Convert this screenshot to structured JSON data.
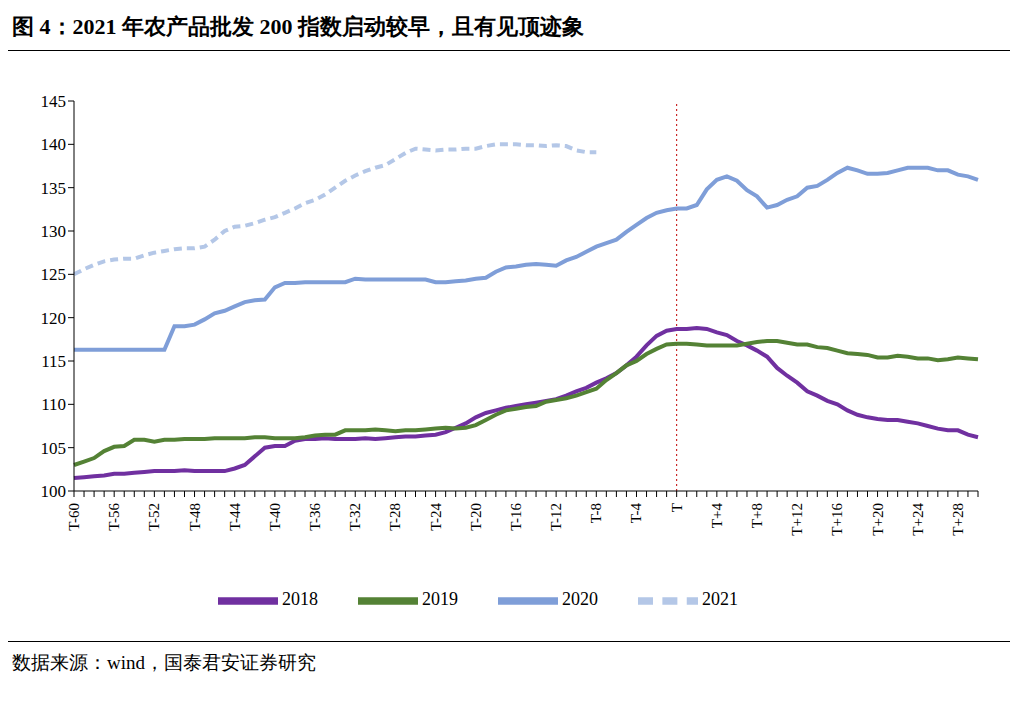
{
  "title": "图 4：2021 年农产品批发 200 指数启动较早，且有见顶迹象",
  "source": "数据来源：wind，国泰君安证券研究",
  "chart_data": {
    "type": "line",
    "categories": [
      "T-60",
      null,
      null,
      null,
      "T-56",
      null,
      null,
      null,
      "T-52",
      null,
      null,
      null,
      "T-48",
      null,
      null,
      null,
      "T-44",
      null,
      null,
      null,
      "T-40",
      null,
      null,
      null,
      "T-36",
      null,
      null,
      null,
      "T-32",
      null,
      null,
      null,
      "T-28",
      null,
      null,
      null,
      "T-24",
      null,
      null,
      null,
      "T-20",
      null,
      null,
      null,
      "T-16",
      null,
      null,
      null,
      "T-12",
      null,
      null,
      null,
      "T-8",
      null,
      null,
      null,
      "T-4",
      null,
      null,
      null,
      "T",
      null,
      null,
      null,
      "T+4",
      null,
      null,
      null,
      "T+8",
      null,
      null,
      null,
      "T+12",
      null,
      null,
      null,
      "T+16",
      null,
      null,
      null,
      "T+20",
      null,
      null,
      null,
      "T+24",
      null,
      null,
      null,
      "T+28",
      null,
      null
    ],
    "ylim": [
      100,
      145
    ],
    "yticks": [
      100,
      105,
      110,
      115,
      120,
      125,
      130,
      135,
      140,
      145
    ],
    "grid": false,
    "legend": "bottom",
    "reference_line": {
      "x": "T",
      "color": "#c00000",
      "line_style": "dotted"
    },
    "series": [
      {
        "name": "2018",
        "color": "#7030a0",
        "line_style": "solid",
        "values": [
          101.5,
          101.6,
          101.7,
          101.8,
          102.0,
          102.0,
          102.1,
          102.2,
          102.3,
          102.3,
          102.3,
          102.4,
          102.3,
          102.3,
          102.3,
          102.3,
          102.6,
          103.0,
          104.0,
          105.0,
          105.2,
          105.2,
          105.8,
          106.0,
          106.0,
          106.1,
          106.0,
          106.0,
          106.0,
          106.1,
          106.0,
          106.1,
          106.2,
          106.3,
          106.3,
          106.4,
          106.5,
          106.8,
          107.3,
          107.8,
          108.5,
          109.0,
          109.3,
          109.6,
          109.8,
          110.0,
          110.2,
          110.4,
          110.6,
          111.0,
          111.5,
          111.9,
          112.5,
          113.0,
          113.6,
          114.5,
          115.5,
          116.8,
          117.9,
          118.5,
          118.7,
          118.7,
          118.8,
          118.7,
          118.3,
          118.0,
          117.3,
          116.8,
          116.2,
          115.5,
          114.2,
          113.3,
          112.5,
          111.5,
          111.0,
          110.4,
          110.0,
          109.3,
          108.8,
          108.5,
          108.3,
          108.2,
          108.2,
          108.0,
          107.8,
          107.5,
          107.2,
          107.0,
          107.0,
          106.5,
          106.2
        ]
      },
      {
        "name": "2019",
        "color": "#548235",
        "line_style": "solid",
        "values": [
          103.0,
          103.4,
          103.8,
          104.6,
          105.1,
          105.2,
          105.9,
          105.9,
          105.7,
          105.9,
          105.9,
          106.0,
          106.0,
          106.0,
          106.1,
          106.1,
          106.1,
          106.1,
          106.2,
          106.2,
          106.1,
          106.1,
          106.1,
          106.2,
          106.4,
          106.5,
          106.5,
          107.0,
          107.0,
          107.0,
          107.1,
          107.0,
          106.9,
          107.0,
          107.0,
          107.1,
          107.2,
          107.3,
          107.2,
          107.3,
          107.6,
          108.2,
          108.8,
          109.3,
          109.5,
          109.7,
          109.8,
          110.3,
          110.5,
          110.7,
          111.0,
          111.4,
          111.8,
          112.8,
          113.6,
          114.5,
          115.0,
          115.8,
          116.4,
          116.9,
          117.0,
          117.0,
          116.9,
          116.8,
          116.8,
          116.8,
          116.8,
          117.0,
          117.2,
          117.3,
          117.3,
          117.1,
          116.9,
          116.9,
          116.6,
          116.5,
          116.2,
          115.9,
          115.8,
          115.7,
          115.4,
          115.4,
          115.6,
          115.5,
          115.3,
          115.3,
          115.1,
          115.2,
          115.4,
          115.3,
          115.2
        ]
      },
      {
        "name": "2020",
        "color": "#7f9ed8",
        "line_style": "solid",
        "values": [
          116.3,
          116.3,
          116.3,
          116.3,
          116.3,
          116.3,
          116.3,
          116.3,
          116.3,
          116.3,
          119.0,
          119.0,
          119.2,
          119.8,
          120.5,
          120.8,
          121.3,
          121.8,
          122.0,
          122.1,
          123.5,
          124.0,
          124.0,
          124.1,
          124.1,
          124.1,
          124.1,
          124.1,
          124.5,
          124.4,
          124.4,
          124.4,
          124.4,
          124.4,
          124.4,
          124.4,
          124.1,
          124.1,
          124.2,
          124.3,
          124.5,
          124.6,
          125.3,
          125.8,
          125.9,
          126.1,
          126.2,
          126.1,
          126.0,
          126.6,
          127.0,
          127.6,
          128.2,
          128.6,
          129.0,
          129.9,
          130.7,
          131.5,
          132.1,
          132.4,
          132.6,
          132.6,
          133.0,
          134.8,
          135.9,
          136.3,
          135.8,
          134.7,
          134.0,
          132.7,
          133.0,
          133.6,
          134.0,
          135.0,
          135.2,
          135.9,
          136.7,
          137.3,
          137.0,
          136.6,
          136.6,
          136.7,
          137.0,
          137.3,
          137.3,
          137.3,
          137.0,
          137.0,
          136.5,
          136.3,
          135.9
        ]
      },
      {
        "name": "2021",
        "color": "#b4c7e7",
        "line_style": "dashed",
        "values": [
          125.0,
          125.6,
          126.1,
          126.5,
          126.7,
          126.8,
          126.8,
          127.2,
          127.5,
          127.7,
          127.9,
          128.0,
          128.0,
          128.2,
          129.0,
          130.0,
          130.5,
          130.6,
          130.9,
          131.3,
          131.6,
          132.1,
          132.6,
          133.2,
          133.6,
          134.2,
          135.0,
          135.8,
          136.4,
          136.9,
          137.3,
          137.6,
          138.3,
          139.0,
          139.5,
          139.4,
          139.3,
          139.4,
          139.4,
          139.5,
          139.5,
          139.8,
          140.0,
          140.0,
          140.0,
          139.9,
          139.9,
          139.8,
          139.9,
          139.8,
          139.3,
          139.1,
          139.1,
          null,
          null,
          null,
          null,
          null,
          null,
          null,
          null,
          null,
          null,
          null,
          null,
          null,
          null,
          null,
          null,
          null,
          null,
          null,
          null,
          null,
          null,
          null,
          null,
          null,
          null,
          null,
          null,
          null,
          null,
          null,
          null,
          null,
          null,
          null,
          null,
          null,
          null
        ]
      }
    ]
  }
}
